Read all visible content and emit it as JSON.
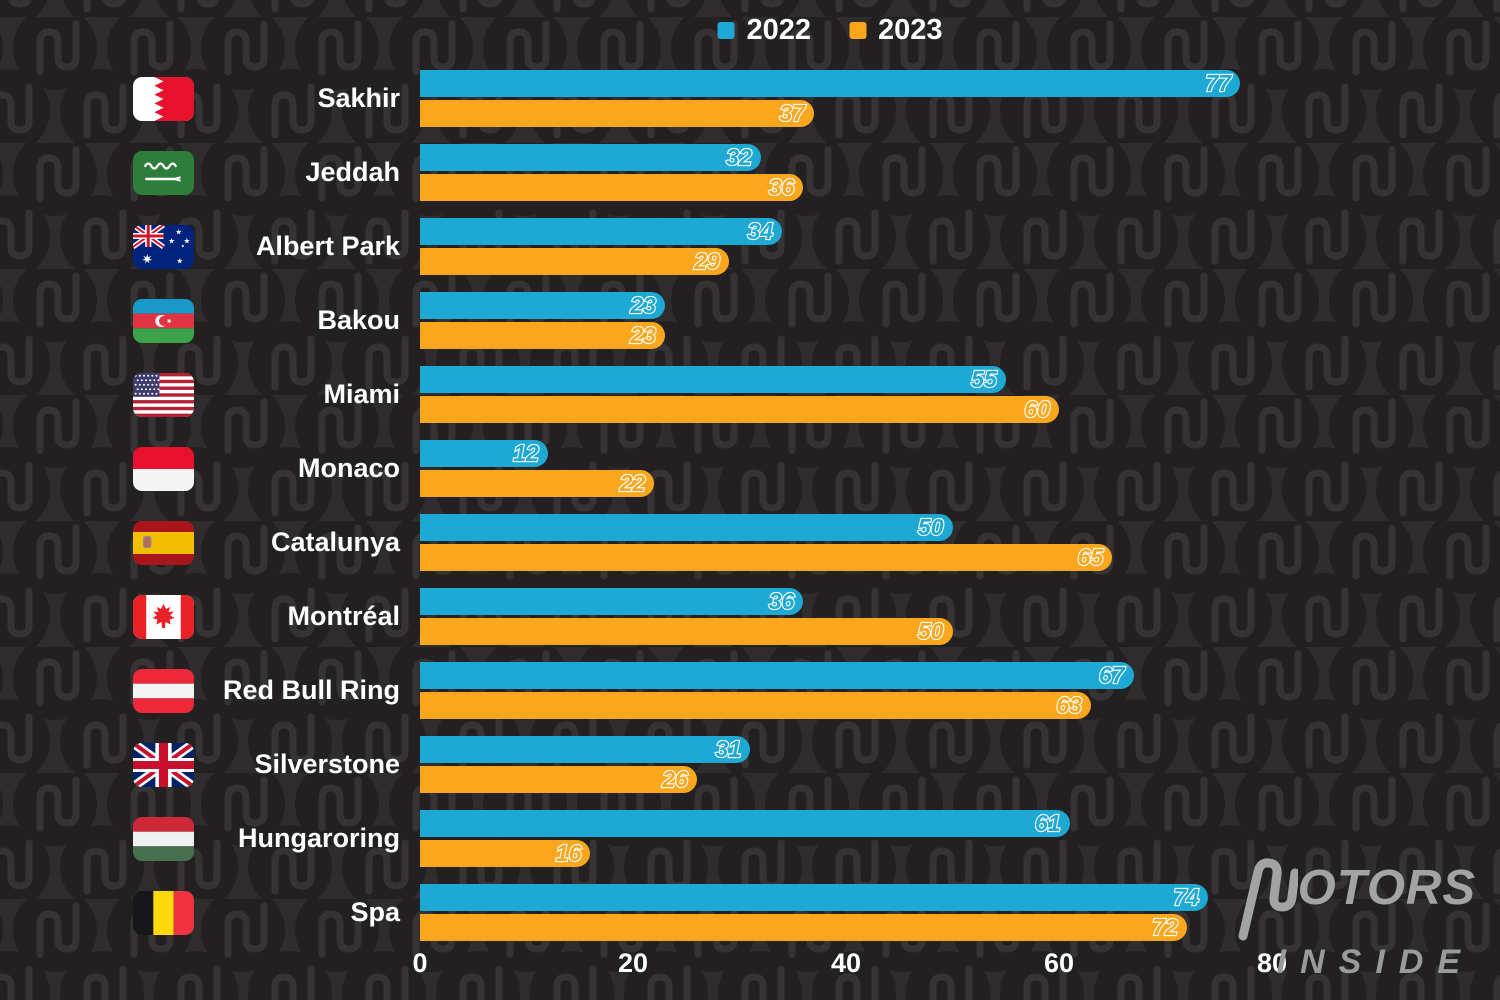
{
  "legend": {
    "items": [
      {
        "label": "2022",
        "color": "#1ea8d4"
      },
      {
        "label": "2023",
        "color": "#faa71e"
      }
    ]
  },
  "chart_data": {
    "type": "bar",
    "orientation": "horizontal",
    "title": "",
    "xlabel": "",
    "ylabel": "",
    "xlim": [
      0,
      80
    ],
    "x_ticks": [
      0,
      20,
      40,
      60,
      80
    ],
    "grid": false,
    "legend_position": "top",
    "categories": [
      "Sakhir",
      "Jeddah",
      "Albert Park",
      "Bakou",
      "Miami",
      "Monaco",
      "Catalunya",
      "Montréal",
      "Red Bull Ring",
      "Silverstone",
      "Hungaroring",
      "Spa"
    ],
    "flag_icons": [
      "bahrain",
      "saudi-arabia",
      "australia",
      "azerbaijan",
      "usa",
      "monaco",
      "spain",
      "canada",
      "austria",
      "uk",
      "hungary",
      "belgium"
    ],
    "series": [
      {
        "name": "2022",
        "color": "#1ea8d4",
        "values": [
          77,
          32,
          34,
          23,
          55,
          12,
          50,
          36,
          67,
          31,
          61,
          74
        ]
      },
      {
        "name": "2023",
        "color": "#faa71e",
        "values": [
          37,
          36,
          29,
          23,
          60,
          22,
          65,
          50,
          63,
          26,
          16,
          72
        ]
      }
    ]
  },
  "logo": {
    "line1": "MOTORS",
    "line2": "INSIDE"
  },
  "colors": {
    "background": "#2f2c2d",
    "pattern_circle": "#232021",
    "pattern_glyph": "#363334",
    "bar_2022": "#1ea8d4",
    "bar_2023": "#faa71e",
    "text": "#ffffff",
    "logo_gray": "#a3a3a3"
  }
}
